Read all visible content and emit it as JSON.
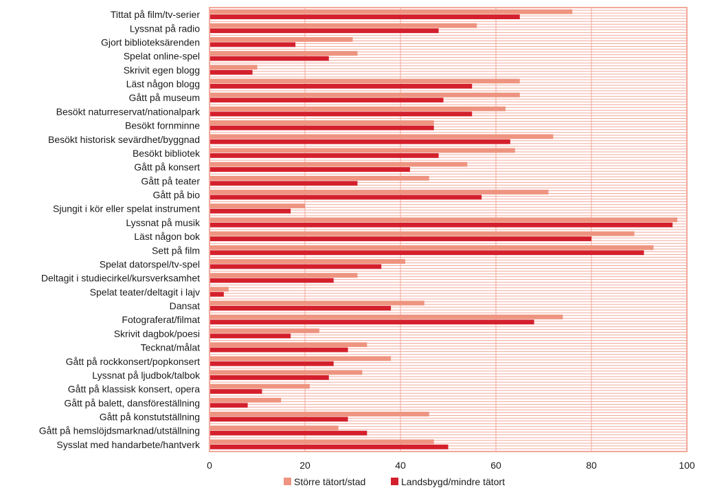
{
  "chart_data": {
    "type": "bar",
    "orientation": "horizontal",
    "categories": [
      "Tittat på film/tv-serier",
      "Lyssnat på radio",
      "Gjort biblioteksärenden",
      "Spelat online-spel",
      "Skrivit egen blogg",
      "Läst någon blogg",
      "Gått på museum",
      "Besökt naturreservat/nationalpark",
      "Besökt fornminne",
      "Besökt historisk sevärdhet/byggnad",
      "Besökt bibliotek",
      "Gått på konsert",
      "Gått på teater",
      "Gått på bio",
      "Sjungit i kör eller spelat instrument",
      "Lyssnat på musik",
      "Läst någon bok",
      "Sett på film",
      "Spelat datorspel/tv-spel",
      "Deltagit i studiecirkel/kursverksamhet",
      "Spelat teater/deltagit i lajv",
      "Dansat",
      "Fotograferat/filmat",
      "Skrivit dagbok/poesi",
      "Tecknat/målat",
      "Gått på rockkonsert/popkonsert",
      "Lyssnat på ljudbok/talbok",
      "Gått på klassisk konsert, opera",
      "Gått på balett, dansföreställning",
      "Gått på konstutställning",
      "Gått på hemslöjdsmarknad/utställning",
      "Sysslat med handarbete/hantverk"
    ],
    "series": [
      {
        "name": "Större tätort/stad",
        "color": "#ee9480",
        "values": [
          76,
          56,
          30,
          31,
          10,
          65,
          65,
          62,
          47,
          72,
          64,
          54,
          46,
          71,
          20,
          98,
          89,
          93,
          41,
          31,
          4,
          45,
          74,
          23,
          33,
          38,
          32,
          21,
          15,
          46,
          27,
          47
        ]
      },
      {
        "name": "Landsbygd/mindre tätort",
        "color": "#d4202c",
        "values": [
          65,
          48,
          18,
          25,
          9,
          55,
          49,
          55,
          47,
          63,
          48,
          42,
          31,
          57,
          17,
          97,
          80,
          91,
          36,
          26,
          3,
          38,
          68,
          17,
          29,
          26,
          25,
          11,
          8,
          29,
          33,
          50
        ]
      }
    ],
    "xlim": [
      0,
      100
    ],
    "xticks": [
      0,
      20,
      40,
      60,
      80,
      100
    ],
    "grid": true,
    "grid_color": "#f2a79a",
    "frame_color": "#f2a79a",
    "legend_position": "bottom"
  }
}
